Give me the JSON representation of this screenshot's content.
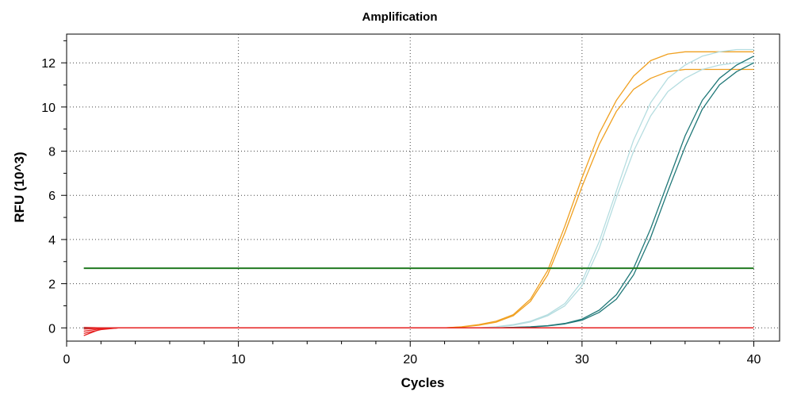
{
  "chart_data": {
    "type": "line",
    "title": "Amplification",
    "xlabel": "Cycles",
    "ylabel": "RFU (10^3)",
    "xlim": [
      0,
      41.5
    ],
    "ylim": [
      -0.6,
      13.3
    ],
    "xticks": [
      0,
      10,
      20,
      30,
      40
    ],
    "yticks": [
      0,
      2,
      4,
      6,
      8,
      10,
      12
    ],
    "grid": true,
    "threshold": {
      "value": 2.7,
      "color": "#217a21"
    },
    "series": [
      {
        "color": "#f0a020",
        "x": [
          22,
          23,
          24,
          25,
          26,
          27,
          28,
          29,
          30,
          31,
          32,
          33,
          34,
          35,
          36,
          37,
          38,
          39,
          40
        ],
        "y": [
          0.0,
          0.05,
          0.15,
          0.3,
          0.6,
          1.3,
          2.6,
          4.6,
          6.8,
          8.8,
          10.3,
          11.4,
          12.1,
          12.4,
          12.5,
          12.5,
          12.5,
          12.5,
          12.5
        ]
      },
      {
        "color": "#f0a020",
        "x": [
          22,
          23,
          24,
          25,
          26,
          27,
          28,
          29,
          30,
          31,
          32,
          33,
          34,
          35,
          36,
          37,
          38,
          39,
          40
        ],
        "y": [
          0.0,
          0.04,
          0.12,
          0.26,
          0.55,
          1.2,
          2.4,
          4.3,
          6.4,
          8.3,
          9.8,
          10.8,
          11.3,
          11.6,
          11.7,
          11.7,
          11.7,
          11.7,
          11.7
        ]
      },
      {
        "color": "#b5dde0",
        "x": [
          24,
          25,
          26,
          27,
          28,
          29,
          30,
          31,
          32,
          33,
          34,
          35,
          36,
          37,
          38,
          39,
          40
        ],
        "y": [
          0.0,
          0.05,
          0.15,
          0.3,
          0.6,
          1.1,
          2.1,
          3.9,
          6.2,
          8.5,
          10.2,
          11.3,
          11.9,
          12.3,
          12.5,
          12.6,
          12.6
        ]
      },
      {
        "color": "#b5dde0",
        "x": [
          24,
          25,
          26,
          27,
          28,
          29,
          30,
          31,
          32,
          33,
          34,
          35,
          36,
          37,
          38,
          39,
          40
        ],
        "y": [
          0.0,
          0.04,
          0.12,
          0.27,
          0.55,
          1.0,
          1.9,
          3.6,
          5.9,
          8.0,
          9.6,
          10.7,
          11.3,
          11.7,
          11.9,
          12.0,
          12.0
        ]
      },
      {
        "color": "#207878",
        "x": [
          25,
          26,
          27,
          28,
          29,
          30,
          31,
          32,
          33,
          34,
          35,
          36,
          37,
          38,
          39,
          40
        ],
        "y": [
          0.0,
          0.02,
          0.05,
          0.1,
          0.2,
          0.4,
          0.8,
          1.5,
          2.7,
          4.5,
          6.6,
          8.7,
          10.3,
          11.3,
          11.9,
          12.3
        ]
      },
      {
        "color": "#207878",
        "x": [
          25,
          26,
          27,
          28,
          29,
          30,
          31,
          32,
          33,
          34,
          35,
          36,
          37,
          38,
          39,
          40
        ],
        "y": [
          0.0,
          0.02,
          0.04,
          0.09,
          0.18,
          0.35,
          0.7,
          1.3,
          2.4,
          4.1,
          6.2,
          8.2,
          9.9,
          11.0,
          11.6,
          12.0
        ]
      },
      {
        "color": "#e62020",
        "x": [
          1,
          2,
          3,
          10,
          20,
          30,
          40
        ],
        "y": [
          -0.35,
          -0.05,
          0.0,
          0.0,
          0.0,
          0.0,
          0.0
        ]
      },
      {
        "color": "#e62020",
        "x": [
          1,
          2,
          3,
          10,
          20,
          30,
          40
        ],
        "y": [
          -0.25,
          -0.08,
          0.0,
          0.0,
          0.0,
          0.0,
          0.0
        ]
      },
      {
        "color": "#e62020",
        "x": [
          1,
          2,
          3,
          10,
          20,
          30,
          40
        ],
        "y": [
          -0.15,
          -0.04,
          0.0,
          0.0,
          0.0,
          0.0,
          0.0
        ]
      },
      {
        "color": "#e62020",
        "x": [
          1,
          2,
          3,
          10,
          20,
          30,
          40
        ],
        "y": [
          -0.05,
          -0.02,
          0.0,
          0.0,
          0.0,
          0.0,
          0.0
        ]
      },
      {
        "color": "#e62020",
        "x": [
          1,
          2,
          3,
          10,
          20,
          30,
          40
        ],
        "y": [
          0.02,
          0.0,
          0.0,
          0.0,
          0.0,
          0.0,
          0.0
        ]
      }
    ],
    "baseline_series": [
      {
        "color": "#f0a020",
        "x": [
          1,
          22
        ],
        "y": [
          0.0,
          0.0
        ]
      },
      {
        "color": "#b5dde0",
        "x": [
          1,
          24
        ],
        "y": [
          0.0,
          0.0
        ]
      },
      {
        "color": "#207878",
        "x": [
          1,
          25
        ],
        "y": [
          0.0,
          0.0
        ]
      }
    ]
  }
}
